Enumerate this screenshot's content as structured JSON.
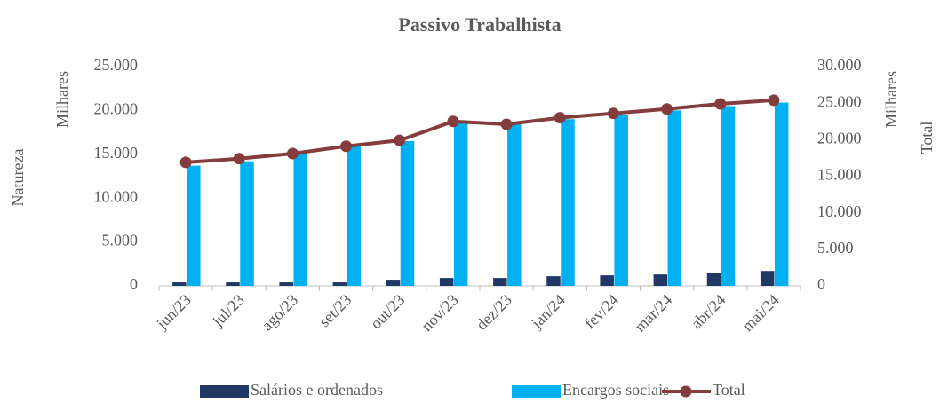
{
  "chart_data": {
    "type": "bar_line",
    "title": "Passivo Trabalhista",
    "y_label": "Natureza",
    "y_unit": "Milhares",
    "y2_label": "Total",
    "y2_unit": "Milhares",
    "categories": [
      "jun/23",
      "jul/23",
      "ago/23",
      "set/23",
      "out/23",
      "nov/23",
      "dez/23",
      "jan/24",
      "fev/24",
      "mar/24",
      "abr/24",
      "mai/24"
    ],
    "series": [
      {
        "name": "Salários e ordenados",
        "type": "bar",
        "color": "#1f3864",
        "values": [
          400,
          400,
          400,
          400,
          700,
          900,
          900,
          1100,
          1200,
          1300,
          1500,
          1700
        ]
      },
      {
        "name": "Encargos sociais",
        "type": "bar",
        "color": "#00b0f0",
        "values": [
          13700,
          14200,
          15000,
          15900,
          16500,
          18700,
          18400,
          19000,
          19500,
          20000,
          20500,
          20900
        ]
      },
      {
        "name": "Total",
        "type": "line",
        "axis": "y2",
        "color": "#843c3c",
        "values": [
          16900,
          17400,
          18100,
          19100,
          19900,
          22500,
          22100,
          23000,
          23600,
          24200,
          24900,
          25400
        ]
      }
    ],
    "ylim": [
      0,
      25000
    ],
    "yticks": [
      0,
      {
        "value": 5000,
        "label": "5.000"
      },
      {
        "value": 10000,
        "label": "10.000"
      },
      {
        "value": 15000,
        "label": "15.000"
      },
      {
        "value": 20000,
        "label": "20.000"
      },
      {
        "value": 25000,
        "label": "25.000"
      }
    ],
    "y2lim": [
      0,
      30000
    ],
    "y2ticks": [
      0,
      {
        "value": 5000,
        "label": "5.000"
      },
      {
        "value": 10000,
        "label": "10.000"
      },
      {
        "value": 15000,
        "label": "15.000"
      },
      {
        "value": 20000,
        "label": "20.000"
      },
      {
        "value": 25000,
        "label": "25.000"
      },
      {
        "value": 30000,
        "label": "30.000"
      }
    ],
    "grid": false,
    "legend": "bottom"
  }
}
